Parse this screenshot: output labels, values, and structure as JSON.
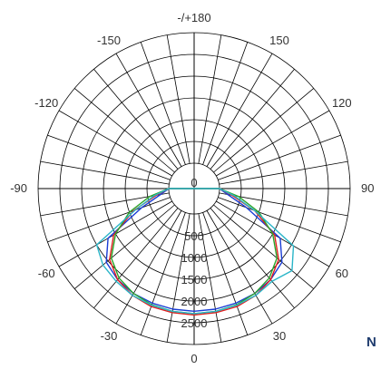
{
  "chart_data": {
    "type": "polar",
    "angle_labels": [
      {
        "angle": 180,
        "label": "-/+180"
      },
      {
        "angle": 150,
        "label": "150"
      },
      {
        "angle": -150,
        "label": "-150"
      },
      {
        "angle": 120,
        "label": "120"
      },
      {
        "angle": -120,
        "label": "-120"
      },
      {
        "angle": 90,
        "label": "90"
      },
      {
        "angle": -90,
        "label": "-90"
      },
      {
        "angle": 60,
        "label": "60"
      },
      {
        "angle": -60,
        "label": "-60"
      },
      {
        "angle": 30,
        "label": "30"
      },
      {
        "angle": -30,
        "label": "-30"
      },
      {
        "angle": 0,
        "label": "0"
      }
    ],
    "radial_ticks": [
      {
        "value": 0,
        "label": "0"
      },
      {
        "value": 500,
        "label": "500"
      },
      {
        "value": 1000,
        "label": "1000"
      },
      {
        "value": 1500,
        "label": "1500"
      },
      {
        "value": 2000,
        "label": "2000"
      },
      {
        "value": 2500,
        "label": "2500"
      }
    ],
    "radial_max": 3000,
    "angular_grid_step": 10,
    "grid": true,
    "series": [
      {
        "color": "#1a3dd6",
        "angles": [
          -90,
          -80,
          -70,
          -60,
          -50,
          -40,
          -30,
          -20,
          -10,
          0,
          10,
          20,
          30,
          40,
          50,
          60,
          70,
          80,
          90
        ],
        "values": [
          0,
          200,
          700,
          1700,
          2050,
          2150,
          2200,
          2220,
          2230,
          2235,
          2230,
          2220,
          2200,
          2150,
          2050,
          1700,
          700,
          200,
          0
        ]
      },
      {
        "color": "#e01f1f",
        "angles": [
          -90,
          -80,
          -70,
          -60,
          -50,
          -40,
          -30,
          -20,
          -10,
          0,
          10,
          20,
          30,
          40,
          50,
          60,
          70,
          80,
          90
        ],
        "values": [
          0,
          300,
          900,
          1550,
          1950,
          2150,
          2250,
          2300,
          2310,
          2320,
          2310,
          2300,
          2250,
          2150,
          1950,
          1550,
          900,
          300,
          0
        ]
      },
      {
        "color": "#2aa52a",
        "angles": [
          -90,
          -80,
          -70,
          -60,
          -50,
          -40,
          -30,
          -20,
          -10,
          0,
          10,
          20,
          30,
          40,
          50,
          60,
          70,
          80,
          90
        ],
        "values": [
          0,
          450,
          1000,
          1500,
          1900,
          2100,
          2200,
          2260,
          2280,
          2290,
          2280,
          2260,
          2200,
          2100,
          1900,
          1500,
          1000,
          450,
          0
        ]
      },
      {
        "color": "#2ab5c8",
        "angles": [
          -90,
          -80,
          -70,
          -60,
          -50,
          -40,
          -30,
          -20,
          -10,
          0,
          10,
          20,
          30,
          40,
          50,
          60,
          70,
          80,
          90
        ],
        "values": [
          0,
          350,
          850,
          2000,
          2150,
          2200,
          2250,
          2270,
          2280,
          2290,
          2280,
          2270,
          2250,
          2200,
          2350,
          2050,
          900,
          350,
          0
        ]
      }
    ]
  },
  "corner": {
    "label": "N"
  }
}
